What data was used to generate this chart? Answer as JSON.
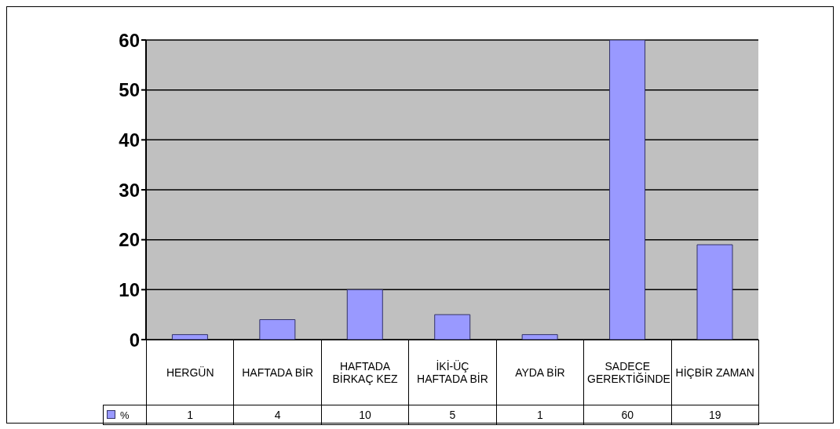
{
  "chart_data": {
    "type": "bar",
    "categories": [
      "HERGÜN",
      "HAFTADA BİR",
      "HAFTADA BİRKAÇ KEZ",
      "İKİ-ÜÇ HAFTADA BİR",
      "AYDA BİR",
      "SADECE GEREKTİĞİNDE",
      "HİÇBİR ZAMAN"
    ],
    "series": [
      {
        "name": "%",
        "color": "#9999ff",
        "values": [
          1,
          4,
          10,
          5,
          1,
          60,
          19
        ]
      }
    ],
    "ylim": [
      0,
      60
    ],
    "yticks": [
      0,
      10,
      20,
      30,
      40,
      50,
      60
    ],
    "grid": "y",
    "legend": "bottom left",
    "data_labels": true
  }
}
